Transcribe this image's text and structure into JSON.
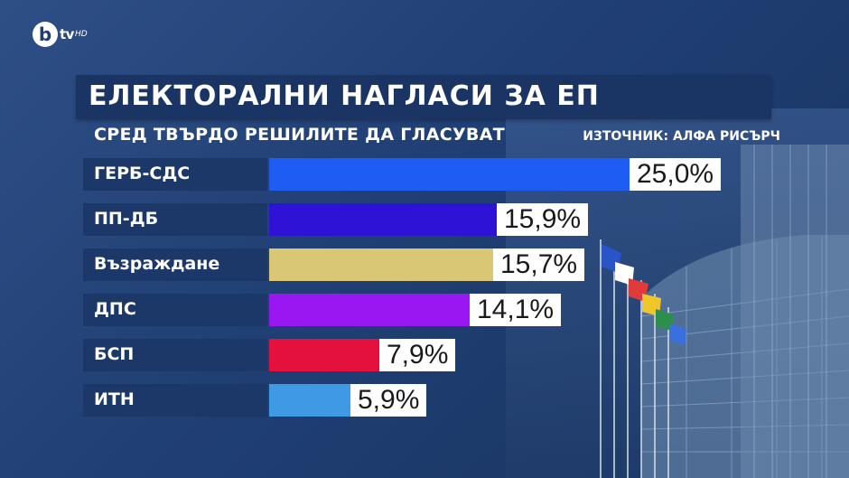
{
  "brand": {
    "mark": "b",
    "channel": "tv",
    "quality": "HD"
  },
  "chart_data": {
    "type": "bar",
    "orientation": "horizontal",
    "title": "ЕЛЕКТОРАЛНИ НАГЛАСИ ЗА ЕП",
    "subtitle": "СРЕД ТВЪРДО РЕШИЛИТЕ ДА ГЛАСУВАТ",
    "source": "ИЗТОЧНИК: АЛФА РИСЪРЧ",
    "value_suffix": "%",
    "items": [
      {
        "name": "ГЕРБ-СДС",
        "value": 25.0,
        "label": "25,0%",
        "color": "#1f5cf2"
      },
      {
        "name": "ПП-ДБ",
        "value": 15.9,
        "label": "15,9%",
        "color": "#2e12d6"
      },
      {
        "name": "Възраждане",
        "value": 15.7,
        "label": "15,7%",
        "color": "#d9c776"
      },
      {
        "name": "ДПС",
        "value": 14.1,
        "label": "14,1%",
        "color": "#9b17f2"
      },
      {
        "name": "БСП",
        "value": 7.9,
        "label": "7,9%",
        "color": "#e4113e"
      },
      {
        "name": "ИТН",
        "value": 5.9,
        "label": "5,9%",
        "color": "#3f99e3"
      }
    ]
  }
}
